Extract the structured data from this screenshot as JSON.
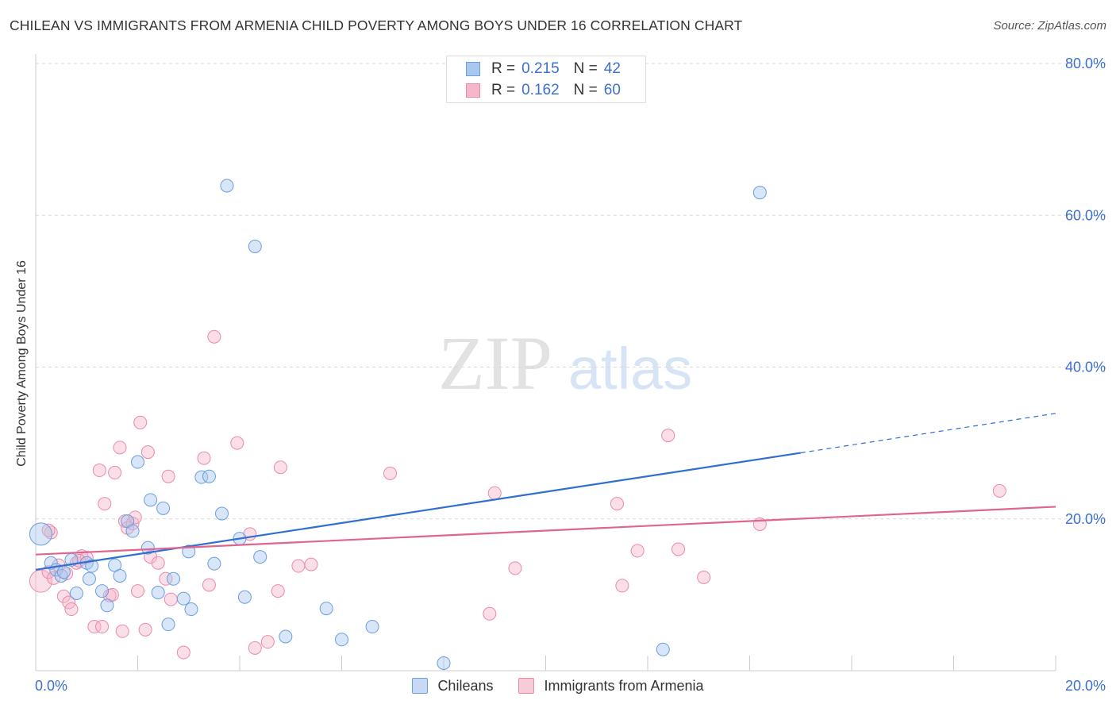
{
  "title": "CHILEAN VS IMMIGRANTS FROM ARMENIA CHILD POVERTY AMONG BOYS UNDER 16 CORRELATION CHART",
  "source": "Source: ZipAtlas.com",
  "watermark": {
    "zip": "ZIP",
    "atlas": "atlas"
  },
  "colors": {
    "blue_fill": "#a8c8f0",
    "blue_stroke": "#6a9ee0",
    "blue_line": "#2f6fd0",
    "pink_fill": "#f5b8cb",
    "pink_stroke": "#ea8aa8",
    "pink_line": "#e0648e",
    "axis_text": "#3b6fd1"
  },
  "legend_top": [
    {
      "r_label": "R =",
      "r_value": "0.215",
      "n_label": "N =",
      "n_value": "42"
    },
    {
      "r_label": "R =",
      "r_value": "0.162",
      "n_label": "N =",
      "n_value": "60"
    }
  ],
  "chart_data": {
    "type": "scatter",
    "title": "CHILEAN VS IMMIGRANTS FROM ARMENIA CHILD POVERTY AMONG BOYS UNDER 16 CORRELATION CHART",
    "xlabel": "",
    "ylabel": "Child Poverty Among Boys Under 16",
    "xlim": [
      0,
      20
    ],
    "ylim": [
      0,
      80
    ],
    "x_tick_labels": [
      "0.0%",
      "20.0%"
    ],
    "y_tick_labels": [
      "20.0%",
      "40.0%",
      "60.0%",
      "80.0%"
    ],
    "y_ticks": [
      20,
      40,
      60,
      80
    ],
    "series": [
      {
        "name": "Chileans",
        "r": 0.215,
        "n": 42,
        "trend": {
          "x0": 0.0,
          "y0": 13.3,
          "x1": 15.0,
          "y1": 28.7,
          "dash_x1": 20.0,
          "dash_y1": 33.9
        },
        "points": [
          [
            0.1,
            18.0
          ],
          [
            0.3,
            14.2
          ],
          [
            0.4,
            13.3
          ],
          [
            0.5,
            12.5
          ],
          [
            0.55,
            13.0
          ],
          [
            0.7,
            14.6
          ],
          [
            0.8,
            10.2
          ],
          [
            1.0,
            14.2
          ],
          [
            1.05,
            12.1
          ],
          [
            1.1,
            13.8
          ],
          [
            1.3,
            10.5
          ],
          [
            1.4,
            8.6
          ],
          [
            1.55,
            13.9
          ],
          [
            1.65,
            12.5
          ],
          [
            1.8,
            19.7
          ],
          [
            1.9,
            18.4
          ],
          [
            2.0,
            27.5
          ],
          [
            2.2,
            16.2
          ],
          [
            2.25,
            22.5
          ],
          [
            2.4,
            10.3
          ],
          [
            2.5,
            21.4
          ],
          [
            2.6,
            6.1
          ],
          [
            2.7,
            12.1
          ],
          [
            2.9,
            9.5
          ],
          [
            3.0,
            15.7
          ],
          [
            3.05,
            8.1
          ],
          [
            3.25,
            25.5
          ],
          [
            3.4,
            25.6
          ],
          [
            3.5,
            14.1
          ],
          [
            3.65,
            20.7
          ],
          [
            3.75,
            63.9
          ],
          [
            4.0,
            17.4
          ],
          [
            4.1,
            9.7
          ],
          [
            4.3,
            55.9
          ],
          [
            4.4,
            15.0
          ],
          [
            4.9,
            4.5
          ],
          [
            5.7,
            8.2
          ],
          [
            6.0,
            4.1
          ],
          [
            6.6,
            5.8
          ],
          [
            8.0,
            1.0
          ],
          [
            12.3,
            2.8
          ],
          [
            14.2,
            63.0
          ]
        ]
      },
      {
        "name": "Immigrants from Armenia",
        "r": 0.162,
        "n": 60,
        "trend": {
          "x0": 0.0,
          "y0": 15.3,
          "x1": 20.0,
          "y1": 21.6
        },
        "points": [
          [
            0.1,
            11.8
          ],
          [
            0.25,
            13.0
          ],
          [
            0.3,
            18.2
          ],
          [
            0.35,
            12.2
          ],
          [
            0.45,
            13.9
          ],
          [
            0.55,
            9.8
          ],
          [
            0.6,
            12.8
          ],
          [
            0.65,
            9.0
          ],
          [
            0.7,
            8.1
          ],
          [
            0.8,
            14.2
          ],
          [
            0.9,
            15.1
          ],
          [
            1.0,
            14.9
          ],
          [
            0.85,
            14.5
          ],
          [
            1.15,
            5.8
          ],
          [
            1.25,
            26.4
          ],
          [
            1.3,
            5.8
          ],
          [
            1.35,
            22.0
          ],
          [
            1.45,
            9.9
          ],
          [
            1.5,
            10.0
          ],
          [
            1.55,
            26.1
          ],
          [
            1.65,
            29.4
          ],
          [
            1.7,
            5.2
          ],
          [
            1.75,
            19.7
          ],
          [
            1.8,
            18.8
          ],
          [
            1.9,
            19.4
          ],
          [
            1.95,
            20.2
          ],
          [
            2.0,
            10.5
          ],
          [
            2.05,
            32.7
          ],
          [
            2.15,
            5.4
          ],
          [
            2.2,
            28.8
          ],
          [
            2.25,
            15.0
          ],
          [
            2.4,
            14.2
          ],
          [
            2.55,
            12.1
          ],
          [
            2.6,
            25.6
          ],
          [
            2.65,
            9.4
          ],
          [
            2.9,
            2.4
          ],
          [
            3.3,
            28.0
          ],
          [
            3.4,
            11.3
          ],
          [
            3.5,
            44.0
          ],
          [
            3.95,
            30.0
          ],
          [
            4.2,
            18.0
          ],
          [
            4.3,
            3.0
          ],
          [
            4.55,
            3.8
          ],
          [
            4.75,
            10.5
          ],
          [
            4.8,
            26.8
          ],
          [
            5.15,
            13.8
          ],
          [
            5.4,
            14.0
          ],
          [
            6.95,
            26.0
          ],
          [
            8.9,
            7.5
          ],
          [
            9.0,
            23.4
          ],
          [
            9.4,
            13.5
          ],
          [
            11.4,
            22.0
          ],
          [
            11.5,
            11.2
          ],
          [
            11.8,
            15.8
          ],
          [
            12.4,
            31.0
          ],
          [
            12.6,
            16.0
          ],
          [
            13.1,
            12.3
          ],
          [
            14.2,
            19.3
          ],
          [
            18.9,
            23.7
          ],
          [
            0.25,
            18.5
          ]
        ]
      }
    ],
    "legend_bottom": [
      "Chileans",
      "Immigrants from Armenia"
    ]
  }
}
